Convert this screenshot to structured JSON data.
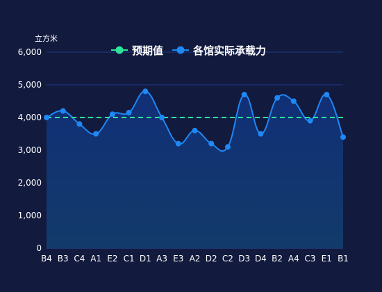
{
  "chart_data": {
    "type": "line",
    "y_unit": "立方米",
    "categories": [
      "B4",
      "B3",
      "C4",
      "A1",
      "E2",
      "C1",
      "D1",
      "A3",
      "E3",
      "A2",
      "D2",
      "C2",
      "D3",
      "D4",
      "B2",
      "A4",
      "C3",
      "E1",
      "B1"
    ],
    "ylim": [
      0,
      6000
    ],
    "yticks": [
      0,
      1000,
      2000,
      3000,
      4000,
      5000,
      6000
    ],
    "ytick_labels": [
      "0",
      "1,000",
      "2,000",
      "3,000",
      "4,000",
      "5,000",
      "6,000"
    ],
    "grid": true,
    "legend_position": "top",
    "series": [
      {
        "name": "预期值",
        "style": "dashed",
        "color": "#2ee69a",
        "values": [
          4000,
          4000,
          4000,
          4000,
          4000,
          4000,
          4000,
          4000,
          4000,
          4000,
          4000,
          4000,
          4000,
          4000,
          4000,
          4000,
          4000,
          4000,
          4000
        ]
      },
      {
        "name": "各馆实际承载力",
        "style": "smooth-area",
        "color": "#1e88f5",
        "values": [
          4000,
          4200,
          3800,
          3500,
          4100,
          4150,
          4800,
          4000,
          3200,
          3600,
          3200,
          3100,
          4700,
          3500,
          4600,
          4500,
          3900,
          4700,
          3400
        ]
      }
    ]
  },
  "colors": {
    "background": "#121a3d",
    "grid": "#1f3a8a",
    "expected": "#2ee69a",
    "actual": "#1e88f5"
  }
}
